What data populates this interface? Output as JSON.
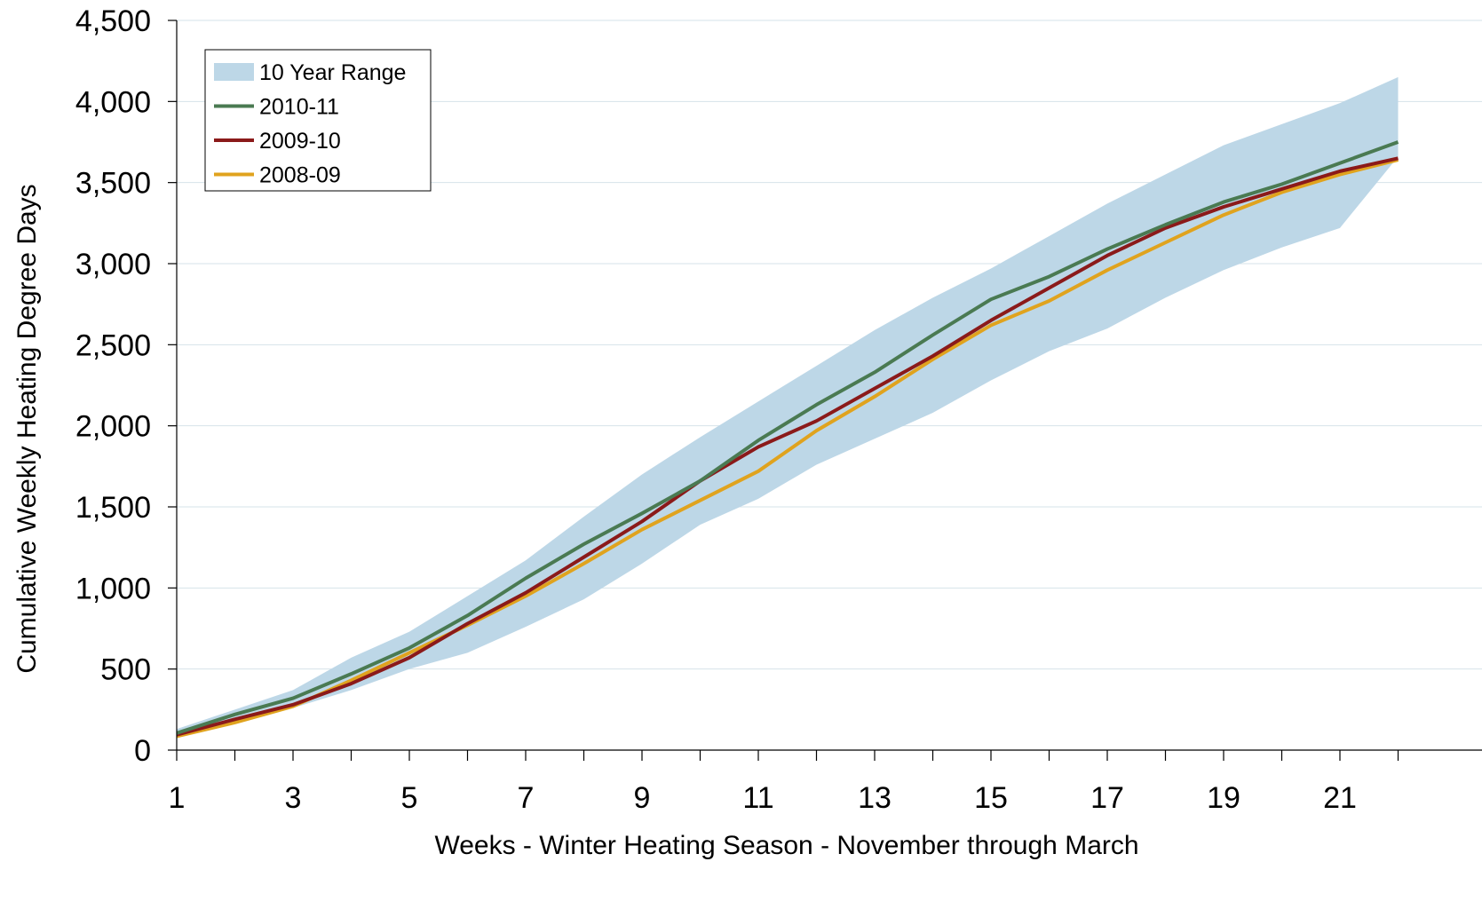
{
  "chart_data": {
    "type": "line",
    "title": "",
    "xlabel": "Weeks - Winter Heating Season - November through March",
    "ylabel": "Cumulative Weekly Heating Degree Days",
    "xlim": [
      1,
      22
    ],
    "ylim": [
      0,
      4500
    ],
    "x_tick_labels": [
      "1",
      "3",
      "5",
      "7",
      "9",
      "11",
      "13",
      "15",
      "17",
      "19",
      "21"
    ],
    "x_tick_values": [
      1,
      3,
      5,
      7,
      9,
      11,
      13,
      15,
      17,
      19,
      21
    ],
    "y_tick_labels": [
      "0",
      "500",
      "1,000",
      "1,500",
      "2,000",
      "2,500",
      "3,000",
      "3,500",
      "4,000",
      "4,500"
    ],
    "y_tick_values": [
      0,
      500,
      1000,
      1500,
      2000,
      2500,
      3000,
      3500,
      4000,
      4500
    ],
    "grid": "horizontal",
    "legend_position": "top-left",
    "x": [
      1,
      2,
      3,
      4,
      5,
      6,
      7,
      8,
      9,
      10,
      11,
      12,
      13,
      14,
      15,
      16,
      17,
      18,
      19,
      20,
      21,
      22
    ],
    "range": {
      "name": "10 Year Range",
      "color": "#bdd7e7",
      "lower": [
        80,
        170,
        260,
        370,
        500,
        600,
        760,
        930,
        1150,
        1390,
        1550,
        1760,
        1920,
        2080,
        2280,
        2460,
        2600,
        2790,
        2960,
        3100,
        3220,
        3660
      ],
      "upper": [
        130,
        250,
        370,
        570,
        730,
        950,
        1170,
        1440,
        1700,
        1930,
        2150,
        2370,
        2590,
        2790,
        2970,
        3170,
        3370,
        3550,
        3730,
        3860,
        3990,
        4150
      ]
    },
    "series": [
      {
        "name": "2010-11",
        "color": "#4a7a52",
        "values": [
          105,
          220,
          320,
          470,
          630,
          830,
          1060,
          1270,
          1460,
          1660,
          1910,
          2130,
          2330,
          2560,
          2780,
          2920,
          3090,
          3240,
          3380,
          3490,
          3620,
          3750
        ]
      },
      {
        "name": "2009-10",
        "color": "#8b1a1a",
        "values": [
          95,
          190,
          280,
          410,
          570,
          780,
          970,
          1190,
          1410,
          1660,
          1870,
          2030,
          2230,
          2430,
          2650,
          2850,
          3050,
          3220,
          3350,
          3460,
          3570,
          3650
        ]
      },
      {
        "name": "2008-09",
        "color": "#e0a31e",
        "values": [
          85,
          170,
          270,
          430,
          600,
          770,
          950,
          1150,
          1360,
          1540,
          1720,
          1970,
          2180,
          2410,
          2620,
          2770,
          2960,
          3130,
          3300,
          3440,
          3550,
          3640
        ]
      }
    ]
  }
}
